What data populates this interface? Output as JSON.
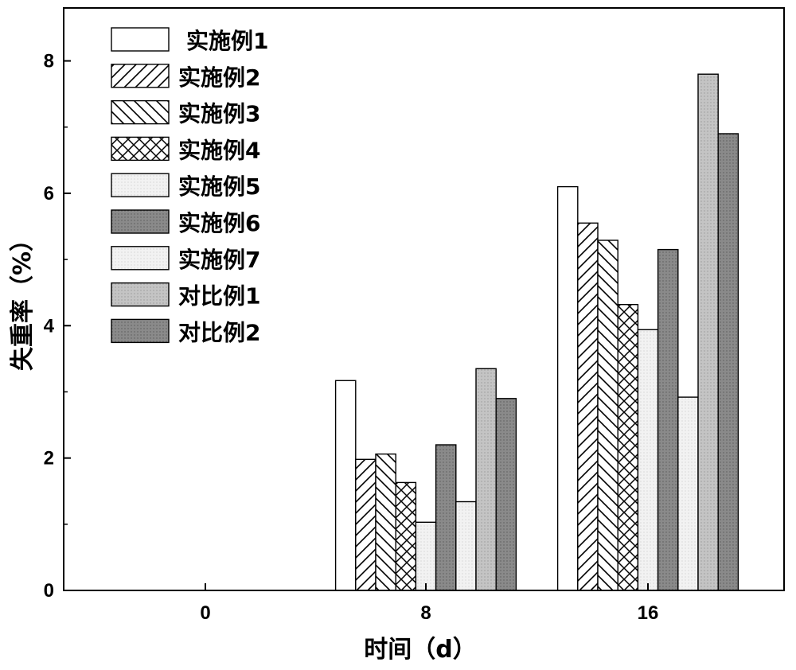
{
  "chart_data": {
    "type": "bar",
    "title": "",
    "xlabel": "时间（d）",
    "ylabel": "失重率（%）",
    "categories": [
      "0",
      "8",
      "16"
    ],
    "ylim": [
      0,
      8.8
    ],
    "yticks": [
      "0",
      "2",
      "4",
      "6",
      "8"
    ],
    "grid": false,
    "legend_position": "top-left",
    "series": [
      {
        "name": "实施例1",
        "pattern": "none",
        "color": "#ffffff",
        "values": [
          0,
          3.17,
          6.1
        ]
      },
      {
        "name": "实施例2",
        "pattern": "diag-forward",
        "color": "#ffffff",
        "values": [
          0,
          1.98,
          5.55
        ]
      },
      {
        "name": "实施例3",
        "pattern": "diag-back",
        "color": "#ffffff",
        "values": [
          0,
          2.06,
          5.29
        ]
      },
      {
        "name": "实施例4",
        "pattern": "crosshatch",
        "color": "#ffffff",
        "values": [
          0,
          1.63,
          4.32
        ]
      },
      {
        "name": "实施例5",
        "pattern": "light-dots",
        "color": "#f1f1f1",
        "values": [
          0,
          1.03,
          3.94
        ]
      },
      {
        "name": "实施例6",
        "pattern": "dark-dots",
        "color": "#8f8f8f",
        "values": [
          0,
          2.2,
          5.15
        ]
      },
      {
        "name": "实施例7",
        "pattern": "light-dots",
        "color": "#ececec",
        "values": [
          0,
          1.34,
          2.92
        ]
      },
      {
        "name": "对比例1",
        "pattern": "medium-dots",
        "color": "#c0c0c0",
        "values": [
          0,
          3.35,
          7.8
        ]
      },
      {
        "name": "对比例2",
        "pattern": "dark-dots",
        "color": "#7a7a7a",
        "values": [
          0,
          2.9,
          6.9
        ]
      }
    ]
  }
}
